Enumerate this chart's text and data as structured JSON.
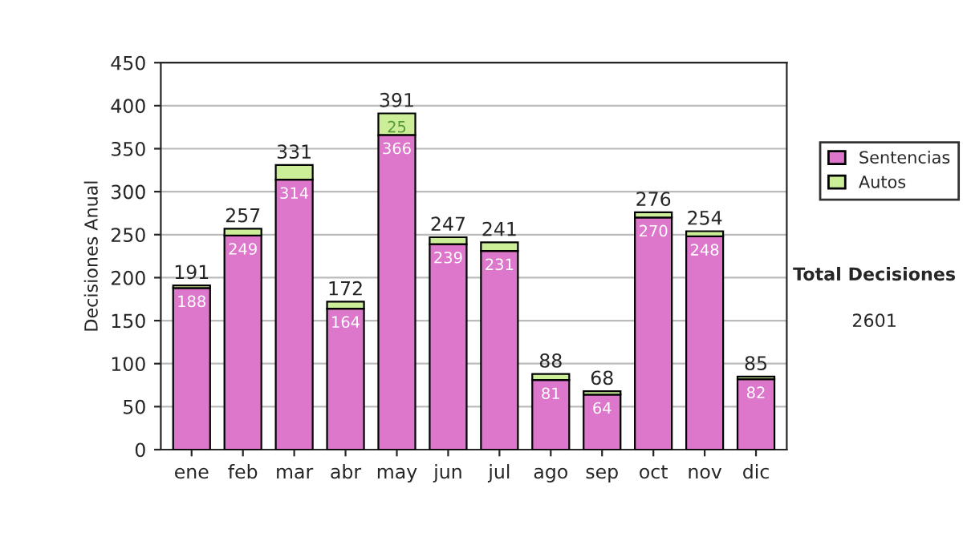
{
  "chart_data": {
    "type": "bar",
    "stacked": true,
    "ylabel": "Decisiones Anual",
    "categories": [
      "ene",
      "feb",
      "mar",
      "abr",
      "may",
      "jun",
      "jul",
      "ago",
      "sep",
      "oct",
      "nov",
      "dic"
    ],
    "series": [
      {
        "name": "Sentencias",
        "color": "#dd77cc",
        "values": [
          188,
          249,
          314,
          164,
          366,
          239,
          231,
          81,
          64,
          270,
          248,
          82
        ],
        "value_labels": [
          "188",
          "249",
          "314",
          "164",
          "366",
          "239",
          "231",
          "81",
          "64",
          "270",
          "248",
          "82"
        ]
      },
      {
        "name": "Autos",
        "color": "#ccee99",
        "values": [
          3,
          8,
          17,
          8,
          25,
          8,
          10,
          7,
          4,
          6,
          6,
          3
        ],
        "value_labels": [
          null,
          null,
          null,
          null,
          "25",
          null,
          null,
          null,
          null,
          null,
          null,
          null
        ]
      }
    ],
    "totals": [
      "191",
      "257",
      "331",
      "172",
      "391",
      "247",
      "241",
      "88",
      "68",
      "276",
      "254",
      "85"
    ],
    "ylim": [
      0,
      450
    ],
    "yticks": [
      0,
      50,
      100,
      150,
      200,
      250,
      300,
      350,
      400,
      450
    ],
    "grid": "y",
    "legend": "right",
    "annotations": [
      "Total Decisiones",
      "2601"
    ]
  }
}
